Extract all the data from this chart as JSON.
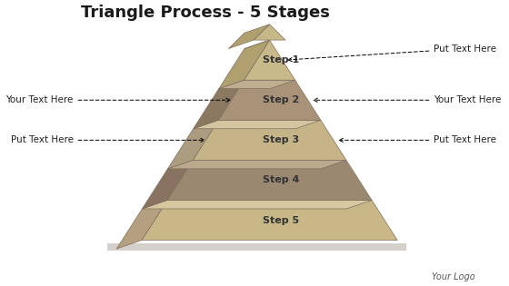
{
  "title": "Triangle Process - 5 Stages",
  "title_fontsize": 13,
  "title_fontweight": "bold",
  "background_color": "#ffffff",
  "steps": [
    "Step 1",
    "Step 2",
    "Step 3",
    "Step 4",
    "Step 5"
  ],
  "front_colors": [
    "#c8b98a",
    "#a89278",
    "#c4b488",
    "#9a8870",
    "#c8b888"
  ],
  "left_colors": [
    "#b0a070",
    "#8a7860",
    "#ac9c80",
    "#887260",
    "#b4a080"
  ],
  "top_colors": [
    "#d8c8a0",
    "#c0ae90",
    "#d4c4a0",
    "#bca88c",
    "#d8c8a0"
  ],
  "tip_front_color": "#c8b888",
  "tip_left_color": "#b0a070",
  "floor_color": "#d4d0cc",
  "shadow_color": "#c0bbb5",
  "label_color": "#333333",
  "label_fontsize": 8,
  "edge_color": "#807060",
  "logo_text": "Your Logo",
  "logo_fontsize": 7,
  "ann_fontsize": 7.5,
  "ann_color": "#222222",
  "ann_left": [
    {
      "text": "Your Text Here",
      "step": 2
    },
    {
      "text": "Put Text Here",
      "step": 3
    }
  ],
  "ann_right": [
    {
      "text": "Put Text Here",
      "step": 1
    },
    {
      "text": "Your Text Here",
      "step": 2
    },
    {
      "text": "Put Text Here",
      "step": 3
    }
  ]
}
